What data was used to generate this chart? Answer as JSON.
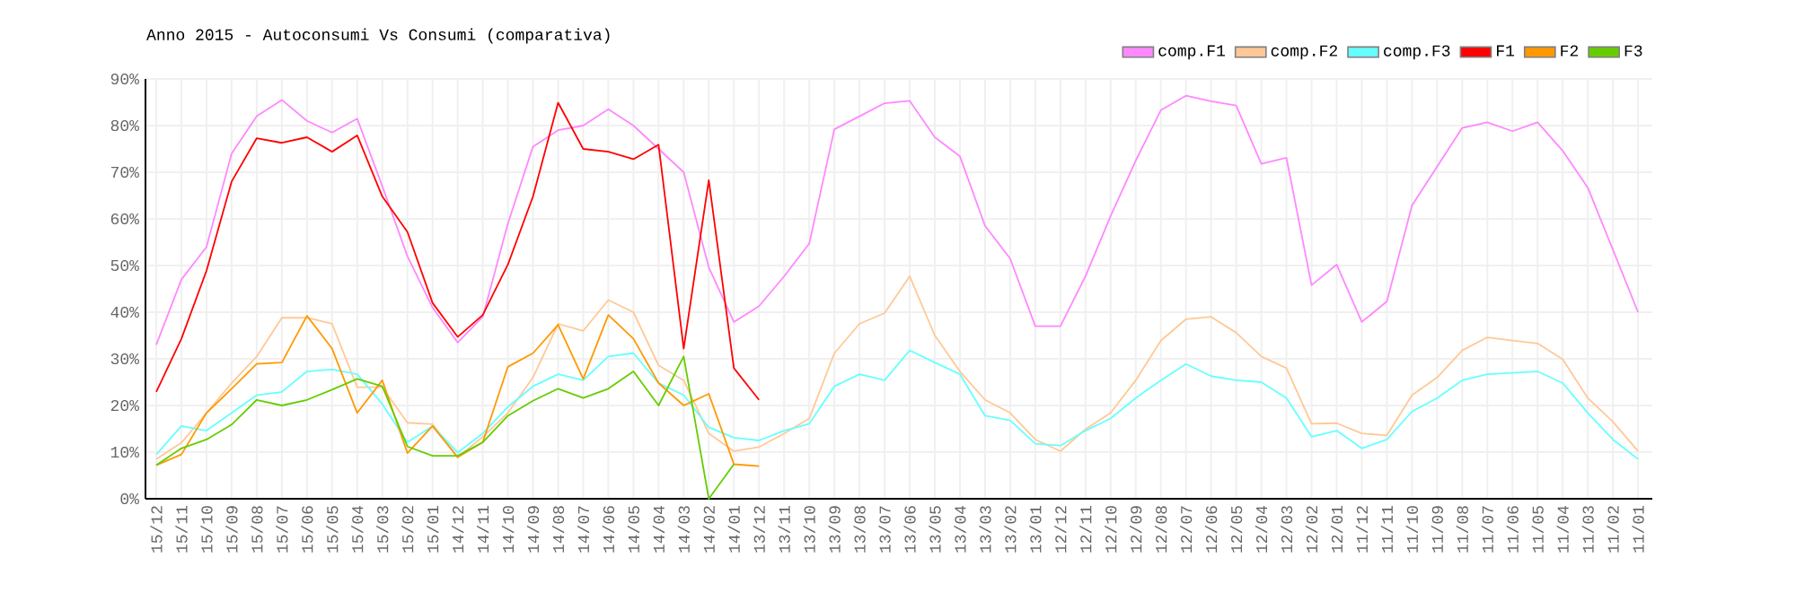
{
  "chart_data": {
    "type": "line",
    "title": "Anno 2015 - Autoconsumi Vs Consumi (comparativa)",
    "categories": [
      "15/12",
      "15/11",
      "15/10",
      "15/09",
      "15/08",
      "15/07",
      "15/06",
      "15/05",
      "15/04",
      "15/03",
      "15/02",
      "15/01",
      "14/12",
      "14/11",
      "14/10",
      "14/09",
      "14/08",
      "14/07",
      "14/06",
      "14/05",
      "14/04",
      "14/03",
      "14/02",
      "14/01",
      "13/12",
      "13/11",
      "13/10",
      "13/09",
      "13/08",
      "13/07",
      "13/06",
      "13/05",
      "13/04",
      "13/03",
      "13/02",
      "13/01",
      "12/12",
      "12/11",
      "12/10",
      "12/09",
      "12/08",
      "12/07",
      "12/06",
      "12/05",
      "12/04",
      "12/03",
      "12/02",
      "12/01",
      "11/12",
      "11/11",
      "11/10",
      "11/09",
      "11/08",
      "11/07",
      "11/06",
      "11/05",
      "11/04",
      "11/03",
      "11/02",
      "11/01"
    ],
    "series": [
      {
        "name": "comp.F1",
        "color": "#ff88ff",
        "values": [
          33,
          47,
          54,
          74,
          82,
          85.5,
          81,
          78.5,
          81.5,
          67,
          52,
          41,
          33.5,
          39,
          59,
          75.5,
          79,
          80,
          83.5,
          80,
          75,
          70,
          49.6,
          37.9,
          41.3,
          47.7,
          54.7,
          79.2,
          82,
          84.8,
          85.3,
          77.5,
          73.4,
          58.5,
          51.5,
          37,
          37,
          47.7,
          60.6,
          72.5,
          83.3,
          86.4,
          85.2,
          84.3,
          71.8,
          73.1,
          45.8,
          50.2,
          37.9,
          42.3,
          62.9,
          71.2,
          79.5,
          80.7,
          78.8,
          80.7,
          74.6,
          66.7,
          53.4,
          40
        ]
      },
      {
        "name": "comp.F2",
        "color": "#ffc896",
        "values": [
          8.5,
          12,
          18.4,
          24.8,
          30.5,
          38.8,
          38.8,
          37.5,
          23.9,
          23.9,
          16.3,
          16,
          8.9,
          13.3,
          18.4,
          26,
          37.5,
          36,
          42.6,
          40,
          28.6,
          25.4,
          14,
          10.2,
          11.1,
          14,
          17.2,
          31.2,
          37.5,
          39.8,
          47.7,
          35,
          27.3,
          21.2,
          18.4,
          12.7,
          10.2,
          14.9,
          18.4,
          25.4,
          33.9,
          38.5,
          39,
          35.6,
          30.5,
          28,
          16.1,
          16.2,
          14,
          13.6,
          22.2,
          26,
          31.8,
          34.6,
          33.9,
          33.3,
          29.9,
          21.6,
          16.5,
          10.2
        ]
      },
      {
        "name": "comp.F3",
        "color": "#66ffff",
        "values": [
          9.5,
          15.6,
          14.6,
          18.4,
          22.2,
          22.9,
          27.3,
          27.7,
          26.7,
          20.3,
          12.1,
          15.6,
          9.9,
          14,
          19.7,
          24.1,
          26.7,
          25.4,
          30.5,
          31.2,
          24.8,
          22.2,
          15.3,
          13.1,
          12.5,
          14.6,
          16.1,
          24.1,
          26.7,
          25.4,
          31.8,
          29.2,
          26.7,
          17.8,
          16.8,
          11.8,
          11.4,
          14.6,
          17.2,
          21.6,
          25.4,
          28.9,
          26.3,
          25.4,
          25,
          21.6,
          13.3,
          14.6,
          10.8,
          12.7,
          18.7,
          21.6,
          25.4,
          26.7,
          27,
          27.3,
          24.8,
          18.4,
          12.7,
          8.5
        ]
      },
      {
        "name": "F1",
        "color": "#ff0000",
        "values": [
          22.9,
          34.3,
          48.9,
          68,
          77.3,
          76.3,
          77.5,
          74.4,
          77.9,
          64.8,
          57.2,
          42,
          34.7,
          39.4,
          50.2,
          64.8,
          84.9,
          75,
          74.4,
          72.8,
          75.9,
          32.2,
          68.3,
          28,
          21.2,
          null,
          null,
          null,
          null,
          null,
          null,
          null,
          null,
          null,
          null,
          null,
          null,
          null,
          null,
          null,
          null,
          null,
          null,
          null,
          null,
          null,
          null,
          null,
          null,
          null,
          null,
          null,
          null,
          null,
          null,
          null,
          null,
          null,
          null,
          null
        ]
      },
      {
        "name": "F2",
        "color": "#ff9900",
        "values": [
          7.2,
          9.5,
          18.4,
          23.6,
          28.9,
          29.2,
          39.2,
          32.2,
          18.4,
          25.4,
          9.8,
          15.6,
          8.9,
          12.1,
          28.3,
          31.2,
          37.3,
          25.7,
          39.4,
          34.3,
          24.8,
          20,
          22.5,
          7.4,
          7,
          null,
          null,
          null,
          null,
          null,
          null,
          null,
          null,
          null,
          null,
          null,
          null,
          null,
          null,
          null,
          null,
          null,
          null,
          null,
          null,
          null,
          null,
          null,
          null,
          null,
          null,
          null,
          null,
          null,
          null,
          null,
          null,
          null,
          null,
          null
        ]
      },
      {
        "name": "F3",
        "color": "#66cc00",
        "values": [
          7.2,
          10.8,
          12.7,
          15.9,
          21.2,
          20,
          21.2,
          23.4,
          25.7,
          24.1,
          11.2,
          9.2,
          9.2,
          12.1,
          17.8,
          21,
          23.6,
          21.6,
          23.6,
          27.3,
          20,
          30.5,
          0,
          7.4,
          null,
          null,
          null,
          null,
          null,
          null,
          null,
          null,
          null,
          null,
          null,
          null,
          null,
          null,
          null,
          null,
          null,
          null,
          null,
          null,
          null,
          null,
          null,
          null,
          null,
          null,
          null,
          null,
          null,
          null,
          null,
          null,
          null,
          null,
          null,
          null
        ]
      }
    ],
    "ylim": [
      0,
      90
    ],
    "yticks": [
      {
        "value": 0,
        "label": "0%"
      },
      {
        "value": 10,
        "label": "10%"
      },
      {
        "value": 20,
        "label": "20%"
      },
      {
        "value": 30,
        "label": "30%"
      },
      {
        "value": 40,
        "label": "40%"
      },
      {
        "value": 50,
        "label": "50%"
      },
      {
        "value": 60,
        "label": "60%"
      },
      {
        "value": 70,
        "label": "70%"
      },
      {
        "value": 80,
        "label": "80%"
      },
      {
        "value": 90,
        "label": "90%"
      }
    ],
    "grid": true,
    "legend": "top right",
    "marker": "none",
    "line_style": "solid"
  }
}
